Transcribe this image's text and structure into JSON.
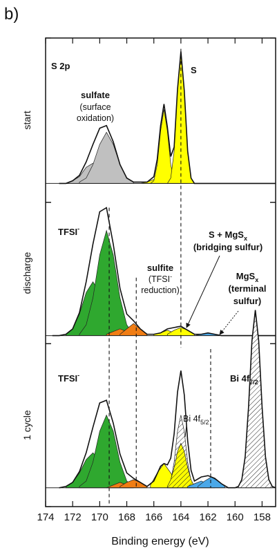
{
  "panel_tag": "b)",
  "chart_data": {
    "type": "line",
    "xlabel": "Binding energy (eV)",
    "xlim": [
      174,
      157
    ],
    "xticks": [
      174,
      172,
      170,
      168,
      166,
      164,
      162,
      160,
      158
    ],
    "ylim": [
      0,
      348
    ],
    "annotations": {
      "s2p": "S 2p",
      "s": "S",
      "sulfate": "sulfate",
      "sulfate_note": [
        "(surface",
        "oxidation)"
      ],
      "tfsi_discharge": {
        "text": "TFSI",
        "sup": "-"
      },
      "sulfite": "sulfite",
      "sulfite_note": {
        "text": "(TFSI",
        "sup": "-",
        "lines": [
          "reduction)"
        ]
      },
      "bridging": {
        "text": "S + MgS",
        "sub": "x",
        "lines": [
          "(bridging sulfur)"
        ]
      },
      "terminal": {
        "text": "MgS",
        "sub": "x",
        "lines": [
          "(terminal",
          "sulfur)"
        ]
      },
      "tfsi_cycle": {
        "text": "TFSI",
        "sup": "-"
      },
      "bi52": {
        "text": "Bi 4f",
        "sub": "5/2"
      },
      "bi72": {
        "text": "Bi 4f",
        "sub": "7/2"
      }
    },
    "ref_lines": [
      {
        "x": 164,
        "y": [
          340,
          118
        ]
      },
      {
        "x": 169.3,
        "y": [
          222,
          2
        ]
      },
      {
        "x": 167.3,
        "y": [
          170,
          14
        ]
      },
      {
        "x": 161.8,
        "y": [
          117,
          14
        ]
      }
    ],
    "panels": [
      {
        "label": "start",
        "ylim": [
          226,
          348
        ],
        "baseline": 240,
        "envelope": {
          "x": [
            173,
            172.5,
            172,
            171.5,
            171,
            170.5,
            170,
            169.5,
            169,
            168.5,
            168,
            167.5,
            167,
            166.5,
            166,
            165.75,
            165.5,
            165.25,
            165,
            164.75,
            164.5,
            164.25,
            164,
            163.75,
            163.5,
            163.25,
            163,
            162,
            161,
            160,
            159,
            158,
            157
          ],
          "values": [
            0,
            0,
            2,
            6,
            16,
            29,
            41,
            43,
            31,
            14,
            4,
            1,
            1,
            1,
            5,
            18,
            43,
            59,
            42,
            20,
            27,
            70,
            98,
            69,
            24,
            4,
            0,
            0,
            0,
            0,
            0,
            0,
            0
          ]
        },
        "components": [
          {
            "color": "#c0c0c0",
            "x": [
              172.5,
              172,
              171.5,
              171,
              170.5,
              170,
              169.5,
              169,
              168.5
            ],
            "values": [
              0,
              2,
              5,
              12,
              15,
              12,
              5,
              2,
              0
            ]
          },
          {
            "color": "#c0c0c0",
            "x": [
              171.5,
              171,
              170.5,
              170,
              169.5,
              169,
              168.5,
              168,
              167.5
            ],
            "values": [
              1,
              4,
              14,
              29,
              38,
              29,
              14,
              4,
              1
            ]
          },
          {
            "color": "#ffff00",
            "x": [
              167.5,
              167,
              166.5,
              166,
              165.5,
              165,
              164.5,
              164,
              163.5
            ],
            "values": [
              0,
              0,
              1,
              3,
              4,
              3,
              1,
              0,
              0
            ]
          },
          {
            "color": "#ffff00",
            "x": [
              166.25,
              166,
              165.75,
              165.5,
              165.25,
              165,
              164.75,
              164.5,
              164.25
            ],
            "values": [
              0,
              2,
              14,
              39,
              55,
              39,
              14,
              2,
              0
            ]
          },
          {
            "color": "#ffff00",
            "x": [
              165,
              164.75,
              164.5,
              164.25,
              164,
              163.75,
              163.5,
              163.25,
              163
            ],
            "values": [
              0,
              4,
              24,
              69,
              98,
              69,
              24,
              4,
              0
            ]
          }
        ]
      },
      {
        "label": "discharge",
        "ylim": [
          121,
          226
        ],
        "baseline": 127,
        "envelope": {
          "x": [
            173.5,
            173,
            172.5,
            172,
            171.5,
            171,
            170.5,
            170,
            169.5,
            169,
            168.5,
            168,
            167.5,
            167,
            166.5,
            166,
            165.5,
            165,
            164.5,
            164,
            163.5,
            163,
            162.5,
            162,
            161.5,
            161,
            160,
            159,
            158,
            157
          ],
          "values": [
            0,
            0,
            1,
            5,
            17,
            40,
            68,
            92,
            95,
            68,
            35,
            16,
            11,
            5,
            1,
            1,
            2,
            5,
            6,
            7,
            4,
            1,
            1,
            2,
            1,
            0,
            0,
            0,
            0,
            0
          ]
        },
        "components": [
          {
            "color": "#2fa82f",
            "x": [
              172.5,
              172,
              171.5,
              171,
              170.5,
              170,
              169.5,
              169,
              168.5
            ],
            "values": [
              1,
              5,
              16,
              32,
              40,
              32,
              16,
              5,
              1
            ]
          },
          {
            "color": "#2fa82f",
            "x": [
              171.5,
              171,
              170.5,
              170,
              169.5,
              169,
              168.5,
              168,
              167.5
            ],
            "values": [
              1,
              8,
              28,
              60,
              78,
              60,
              28,
              8,
              1
            ]
          },
          {
            "color": "#f07d14",
            "x": [
              169.5,
              169,
              168.5,
              168,
              167.5
            ],
            "values": [
              1,
              3,
              5,
              3,
              1
            ]
          },
          {
            "color": "#f07d14",
            "x": [
              168.5,
              168,
              167.5,
              167,
              166.5
            ],
            "values": [
              1,
              5,
              9,
              5,
              1
            ]
          },
          {
            "color": "#ffff00",
            "x": [
              166,
              165.5,
              165,
              164.5,
              164
            ],
            "values": [
              1,
              2,
              4,
              2,
              1
            ]
          },
          {
            "color": "#ffff00",
            "x": [
              165,
              164.5,
              164,
              163.5,
              163
            ],
            "values": [
              1,
              4,
              6,
              4,
              1
            ]
          },
          {
            "color": "#4aa8e8",
            "x": [
              163,
              162.5,
              162,
              161.5,
              161
            ],
            "values": [
              0,
              1,
              2,
              1,
              0
            ]
          }
        ]
      },
      {
        "label": "1 cycle",
        "ylim": [
          0,
          121
        ],
        "baseline": 14,
        "envelope": {
          "x": [
            173,
            172.5,
            172,
            171.5,
            171,
            170.5,
            170,
            169.5,
            169,
            168.5,
            168,
            167.5,
            167,
            166.5,
            166,
            165.5,
            165.25,
            165,
            164.75,
            164.5,
            164.25,
            164,
            163.75,
            163.5,
            163.25,
            163,
            162.5,
            162,
            161.5,
            161,
            160.5,
            160,
            159.75,
            159.5,
            159.25,
            159,
            158.75,
            158.5,
            158.25,
            158,
            157.75,
            157.5,
            157.25,
            157
          ],
          "values": [
            0,
            1,
            4,
            12,
            26,
            45,
            63,
            65,
            48,
            25,
            11,
            7,
            4,
            1,
            5,
            16,
            18,
            17,
            22,
            40,
            71,
            87,
            69,
            35,
            13,
            5,
            8,
            9,
            7,
            3,
            0,
            0,
            1,
            6,
            23,
            60,
            109,
            132,
            109,
            60,
            23,
            6,
            1,
            0
          ]
        },
        "components": [
          {
            "color": "#2fa82f",
            "x": [
              172.5,
              172,
              171.5,
              171,
              170.5,
              170,
              169.5,
              169,
              168.5
            ],
            "values": [
              1,
              4,
              11,
              21,
              26,
              21,
              11,
              4,
              1
            ]
          },
          {
            "color": "#2fa82f",
            "x": [
              171.5,
              171,
              170.5,
              170,
              169.5,
              169,
              168.5,
              168,
              167.5
            ],
            "values": [
              1,
              5,
              19,
              42,
              54,
              42,
              19,
              5,
              1
            ]
          },
          {
            "color": "#f07d14",
            "x": [
              169.5,
              169,
              168.5,
              168,
              167.5
            ],
            "values": [
              0,
              2,
              4,
              2,
              0
            ]
          },
          {
            "color": "#f07d14",
            "x": [
              168.5,
              168,
              167.5,
              167,
              166.5
            ],
            "values": [
              1,
              4,
              6,
              4,
              1
            ]
          },
          {
            "color": "#ffff00",
            "x": [
              166.25,
              165.75,
              165.25,
              164.75,
              164.25
            ],
            "values": [
              2,
              11,
              18,
              11,
              2
            ]
          },
          {
            "color": "#ffffff",
            "hatch": true,
            "x": [
              165,
              164.75,
              164.5,
              164.25,
              164,
              163.75,
              163.5,
              163.25,
              163
            ],
            "values": [
              1,
              5,
              19,
              42,
              54,
              42,
              19,
              5,
              1
            ]
          },
          {
            "color": "#ffff00",
            "hatch": true,
            "x": [
              165,
              164.75,
              164.5,
              164.25,
              164,
              163.75,
              163.5,
              163.25,
              163
            ],
            "values": [
              1,
              6,
              15,
              27,
              33,
              27,
              15,
              6,
              1
            ]
          },
          {
            "color": "#4aa8e8",
            "x": [
              163.5,
              163,
              162.5,
              162,
              161.5
            ],
            "values": [
              1,
              3,
              5,
              3,
              1
            ]
          },
          {
            "color": "#4aa8e8",
            "x": [
              162.75,
              162.25,
              161.75,
              161.25,
              160.75
            ],
            "values": [
              1,
              5,
              8,
              5,
              1
            ]
          },
          {
            "color": "#ffffff",
            "hatch": true,
            "x": [
              159.75,
              159.5,
              159.25,
              159,
              158.75,
              158.5,
              158.25,
              158,
              157.75,
              157.5,
              157.25
            ],
            "values": [
              1,
              6,
              23,
              60,
              109,
              132,
              109,
              60,
              23,
              6,
              1
            ]
          }
        ]
      }
    ]
  }
}
